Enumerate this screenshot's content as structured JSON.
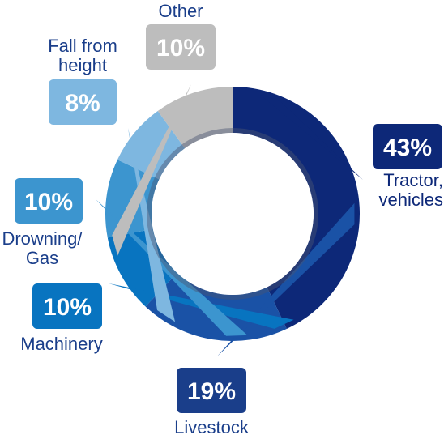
{
  "chart_data": {
    "type": "pie",
    "variant": "donut",
    "start_angle_deg": 0,
    "direction": "clockwise",
    "series": [
      {
        "name": "Tractor, vehicles",
        "label_lines": [
          "Tractor,",
          "vehicles"
        ],
        "value": 43,
        "value_label": "43%",
        "color": "#0D2878",
        "label_color": "#0D2878",
        "badge_color": "#0D2878"
      },
      {
        "name": "Livestock",
        "label_lines": [
          "Livestock"
        ],
        "value": 19,
        "value_label": "19%",
        "color": "#1A52A6",
        "label_color": "#1A3E8A",
        "badge_color": "#1A3E8A"
      },
      {
        "name": "Machinery",
        "label_lines": [
          "Machinery"
        ],
        "value": 10,
        "value_label": "10%",
        "color": "#0874C0",
        "label_color": "#1A3E8A",
        "badge_color": "#0874C0"
      },
      {
        "name": "Drowning/ Gas",
        "label_lines": [
          "Drowning/",
          "Gas"
        ],
        "value": 10,
        "value_label": "10%",
        "color": "#3C95CF",
        "label_color": "#1A3E8A",
        "badge_color": "#3C95CF"
      },
      {
        "name": "Fall from height",
        "label_lines": [
          "Fall from",
          "height"
        ],
        "value": 8,
        "value_label": "8%",
        "color": "#7EB7E0",
        "label_color": "#1A3E8A",
        "badge_color": "#7EB7E0"
      },
      {
        "name": "Other",
        "label_lines": [
          "Other"
        ],
        "value": 10,
        "value_label": "10%",
        "color": "#BDBDBD",
        "label_color": "#1A3E8A",
        "badge_color": "#BDBDBD"
      }
    ]
  }
}
